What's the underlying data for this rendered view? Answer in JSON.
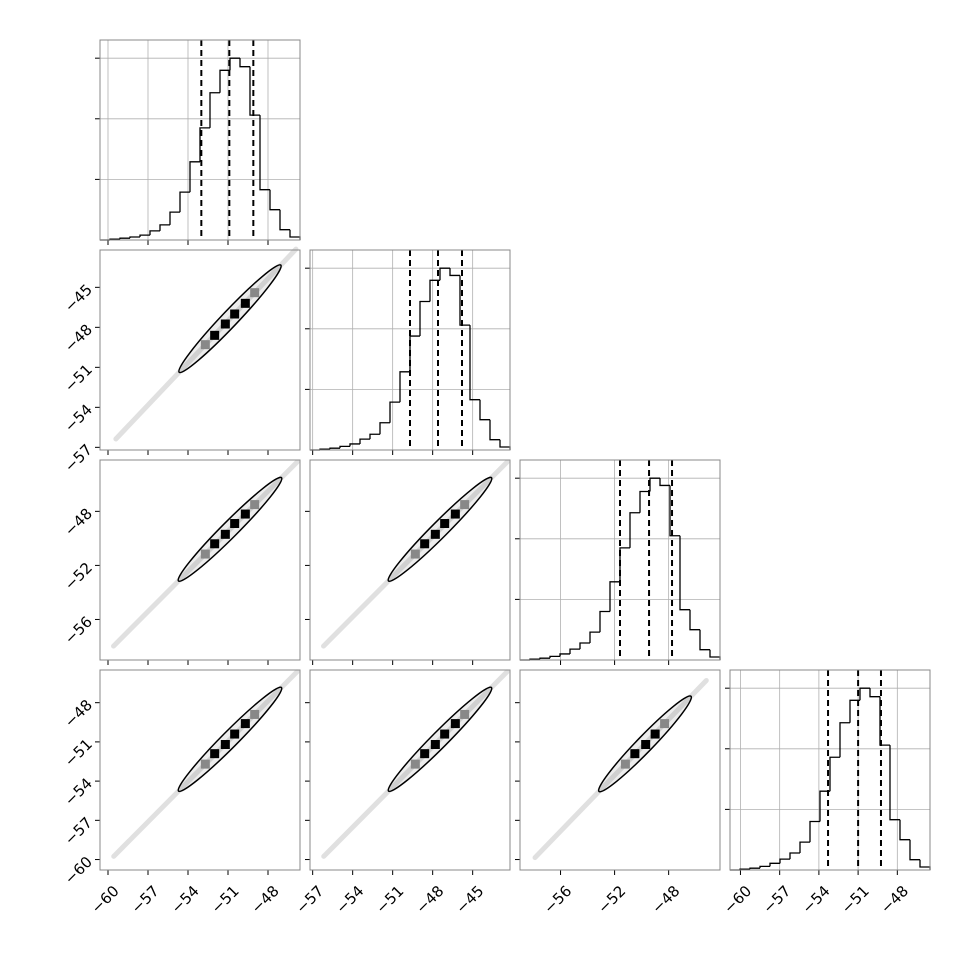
{
  "chart_data": {
    "type": "corner",
    "grid": true,
    "axes": [
      {
        "lim": [
          -60.6,
          -45.6
        ],
        "ticks": [
          {
            "value": -60,
            "label": "−60"
          },
          {
            "value": -57,
            "label": "−57"
          },
          {
            "value": -54,
            "label": "−54"
          },
          {
            "value": -51,
            "label": "−51"
          },
          {
            "value": -48,
            "label": "−48"
          }
        ]
      },
      {
        "lim": [
          -57.2,
          -42.2
        ],
        "ticks": [
          {
            "value": -57,
            "label": "−57"
          },
          {
            "value": -54,
            "label": "−54"
          },
          {
            "value": -51,
            "label": "−51"
          },
          {
            "value": -48,
            "label": "−48"
          },
          {
            "value": -45,
            "label": "−45"
          }
        ]
      },
      {
        "lim": [
          -59,
          -44.2
        ],
        "ticks": [
          {
            "value": -56,
            "label": "−56"
          },
          {
            "value": -52,
            "label": "−52"
          },
          {
            "value": -48,
            "label": "−48"
          }
        ]
      },
      {
        "lim": [
          -60.8,
          -45.5
        ],
        "ticks": [
          {
            "value": -60,
            "label": "−60"
          },
          {
            "value": -57,
            "label": "−57"
          },
          {
            "value": -54,
            "label": "−54"
          },
          {
            "value": -51,
            "label": "−51"
          },
          {
            "value": -48,
            "label": "−48"
          }
        ]
      }
    ],
    "hist_ylim": [
      0,
      3300
    ],
    "hist_yticks": [
      1000,
      2000,
      3000
    ],
    "histograms": [
      {
        "bins": [
          -60.6,
          -59.85,
          -59.1,
          -58.35,
          -57.6,
          -56.85,
          -56.1,
          -55.35,
          -54.6,
          -53.85,
          -53.1,
          -52.35,
          -51.6,
          -50.85,
          -50.1,
          -49.35,
          -48.6,
          -47.85,
          -47.1,
          -46.35,
          -45.6
        ],
        "values": [
          0,
          15,
          30,
          50,
          80,
          150,
          250,
          460,
          790,
          1290,
          1850,
          2430,
          2800,
          3000,
          2860,
          2060,
          830,
          500,
          170,
          50
        ],
        "quantiles": [
          -53.0,
          -50.9,
          -49.1
        ]
      },
      {
        "bins": [
          -57.2,
          -56.45,
          -55.7,
          -54.95,
          -54.2,
          -53.45,
          -52.7,
          -51.95,
          -51.2,
          -50.45,
          -49.7,
          -48.95,
          -48.2,
          -47.45,
          -46.7,
          -45.95,
          -45.2,
          -44.45,
          -43.7,
          -42.95,
          -42.2
        ],
        "values": [
          0,
          15,
          30,
          60,
          100,
          180,
          260,
          450,
          790,
          1290,
          1880,
          2450,
          2800,
          3000,
          2880,
          2060,
          830,
          500,
          170,
          50
        ],
        "quantiles": [
          -49.7,
          -47.6,
          -45.8
        ]
      },
      {
        "bins": [
          -59,
          -58.26,
          -57.52,
          -56.78,
          -56.04,
          -55.3,
          -54.56,
          -53.82,
          -53.08,
          -52.34,
          -51.6,
          -50.86,
          -50.12,
          -49.38,
          -48.64,
          -47.9,
          -47.16,
          -46.42,
          -45.68,
          -44.94,
          -44.2
        ],
        "values": [
          0,
          15,
          30,
          60,
          100,
          180,
          280,
          460,
          800,
          1290,
          1850,
          2430,
          2780,
          3000,
          2880,
          2050,
          830,
          500,
          170,
          50
        ],
        "quantiles": [
          -51.6,
          -49.45,
          -47.75
        ]
      },
      {
        "bins": [
          -60.8,
          -60.035,
          -59.27,
          -58.505,
          -57.74,
          -56.975,
          -56.21,
          -55.445,
          -54.68,
          -53.915,
          -53.15,
          -52.385,
          -51.62,
          -50.855,
          -50.09,
          -49.325,
          -48.56,
          -47.795,
          -47.03,
          -46.265,
          -45.5
        ],
        "values": [
          0,
          15,
          30,
          60,
          110,
          180,
          280,
          460,
          800,
          1300,
          1860,
          2430,
          2800,
          3000,
          2860,
          2060,
          830,
          500,
          170,
          50
        ],
        "quantiles": [
          -53.3,
          -51.0,
          -49.25
        ]
      }
    ],
    "pairs": [
      [
        {
          "x": [
            -52.7,
            -52.0,
            -51.2,
            -50.5,
            -49.7,
            -49.0
          ],
          "y": [
            -49.3,
            -48.6,
            -47.75,
            -47.0,
            -46.2,
            -45.4
          ]
        }
      ],
      [
        {
          "x": [
            -52.7,
            -52.0,
            -51.2,
            -50.5,
            -49.7,
            -49.0
          ],
          "y": [
            -51.16,
            -50.4,
            -49.7,
            -48.9,
            -48.2,
            -47.5
          ]
        },
        {
          "x": [
            -49.3,
            -48.6,
            -47.8,
            -47.1,
            -46.3,
            -45.6
          ],
          "y": [
            -51.16,
            -50.4,
            -49.7,
            -48.9,
            -48.2,
            -47.5
          ]
        }
      ],
      [
        {
          "x": [
            -52.7,
            -52.0,
            -51.2,
            -50.5,
            -49.7,
            -49.0
          ],
          "y": [
            -52.7,
            -51.9,
            -51.2,
            -50.4,
            -49.6,
            -48.9
          ]
        },
        {
          "x": [
            -49.3,
            -48.6,
            -47.8,
            -47.1,
            -46.3,
            -45.6
          ],
          "y": [
            -52.7,
            -51.9,
            -51.2,
            -50.4,
            -49.6,
            -48.9
          ]
        },
        {
          "x": [
            -51.2,
            -50.5,
            -49.7,
            -49.0,
            -48.3
          ],
          "y": [
            -52.7,
            -51.9,
            -51.2,
            -50.4,
            -49.6
          ]
        }
      ]
    ]
  }
}
